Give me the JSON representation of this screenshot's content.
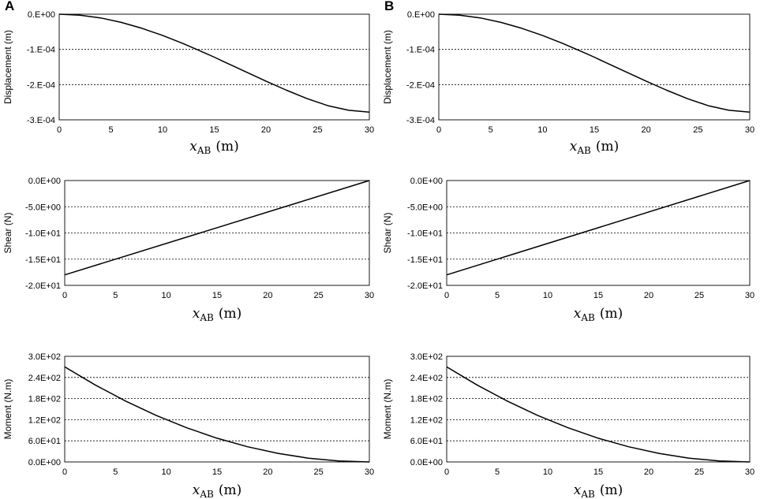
{
  "panels": [
    {
      "label": "A"
    },
    {
      "label": "B"
    }
  ],
  "chart_data": [
    {
      "panel": "A",
      "type": "line",
      "title": "",
      "ylabel": "Displacement (m)",
      "xlabel": {
        "var": "x",
        "sub": "AB",
        "unit": "(m)"
      },
      "xlim": [
        0,
        30
      ],
      "ylim": [
        -0.0003,
        0
      ],
      "xticks": [
        0,
        5,
        10,
        15,
        20,
        25,
        30
      ],
      "xtick_labels": [
        "0",
        "5",
        "10",
        "15",
        "20",
        "25",
        "30"
      ],
      "yticks": [
        0,
        -0.0001,
        -0.0002,
        -0.0003
      ],
      "ytick_labels": [
        "0.E+00",
        "-1.E-04",
        "-2.E-04",
        "-3.E-04"
      ],
      "gridlines": [
        -0.0001,
        -0.0002
      ],
      "series": [
        {
          "name": "Displacement",
          "x": [
            0,
            2,
            4,
            6,
            8,
            10,
            12,
            14,
            15,
            16,
            18,
            20,
            22,
            24,
            26,
            28,
            30
          ],
          "y": [
            0,
            -2.7e-06,
            -1.06e-05,
            -2.32e-05,
            -4e-05,
            -6.03e-05,
            -8.35e-05,
            -0.000109,
            -0.000122,
            -0.000136,
            -0.000163,
            -0.00019,
            -0.000216,
            -0.00024,
            -0.00026,
            -0.000273,
            -0.000278
          ]
        }
      ]
    },
    {
      "panel": "B",
      "type": "line",
      "title": "",
      "ylabel": "Displacement (m)",
      "xlabel": {
        "var": "x",
        "sub": "AB",
        "unit": "(m)"
      },
      "xlim": [
        0,
        30
      ],
      "ylim": [
        -0.0003,
        0
      ],
      "xticks": [
        0,
        5,
        10,
        15,
        20,
        25,
        30
      ],
      "xtick_labels": [
        "0",
        "5",
        "10",
        "15",
        "20",
        "25",
        "30"
      ],
      "yticks": [
        0,
        -0.0001,
        -0.0002,
        -0.0003
      ],
      "ytick_labels": [
        "0.E+00",
        "-1.E-04",
        "-2.E-04",
        "-3.E-04"
      ],
      "gridlines": [
        -0.0001,
        -0.0002
      ],
      "series": [
        {
          "name": "Displacement",
          "x": [
            0,
            2,
            4,
            6,
            8,
            10,
            12,
            14,
            15,
            16,
            18,
            20,
            22,
            24,
            26,
            28,
            30
          ],
          "y": [
            0,
            -2.7e-06,
            -1.06e-05,
            -2.32e-05,
            -4e-05,
            -6.03e-05,
            -8.35e-05,
            -0.000109,
            -0.000122,
            -0.000136,
            -0.000163,
            -0.00019,
            -0.000216,
            -0.00024,
            -0.00026,
            -0.000273,
            -0.000278
          ]
        }
      ]
    },
    {
      "panel": "A",
      "type": "line",
      "title": "",
      "ylabel": "Shear (N)",
      "xlabel": {
        "var": "x",
        "sub": "AB",
        "unit": "(m)"
      },
      "xlim": [
        0,
        30
      ],
      "ylim": [
        -20,
        0
      ],
      "xticks": [
        0,
        5,
        10,
        15,
        20,
        25,
        30
      ],
      "xtick_labels": [
        "0",
        "5",
        "10",
        "15",
        "20",
        "25",
        "30"
      ],
      "yticks": [
        0,
        -5,
        -10,
        -15,
        -20
      ],
      "ytick_labels": [
        "0.0E+00",
        "-5.0E+00",
        "-1.0E+01",
        "-1.5E+01",
        "-2.0E+01"
      ],
      "gridlines": [
        -5,
        -10,
        -15
      ],
      "series": [
        {
          "name": "Shear",
          "x": [
            0,
            30
          ],
          "y": [
            -18,
            0
          ]
        }
      ]
    },
    {
      "panel": "B",
      "type": "line",
      "title": "",
      "ylabel": "Shear (N)",
      "xlabel": {
        "var": "x",
        "sub": "AB",
        "unit": "(m)"
      },
      "xlim": [
        0,
        30
      ],
      "ylim": [
        -20,
        0
      ],
      "xticks": [
        0,
        5,
        10,
        15,
        20,
        25,
        30
      ],
      "xtick_labels": [
        "0",
        "5",
        "10",
        "15",
        "20",
        "25",
        "30"
      ],
      "yticks": [
        0,
        -5,
        -10,
        -15,
        -20
      ],
      "ytick_labels": [
        "0.0E+00",
        "-5.0E+00",
        "-1.0E+01",
        "-1.5E+01",
        "-2.0E+01"
      ],
      "gridlines": [
        -5,
        -10,
        -15
      ],
      "series": [
        {
          "name": "Shear",
          "x": [
            0,
            30
          ],
          "y": [
            -18,
            0
          ]
        }
      ]
    },
    {
      "panel": "A",
      "type": "line",
      "title": "",
      "ylabel": "Moment (N.m)",
      "xlabel": {
        "var": "x",
        "sub": "AB",
        "unit": "(m)"
      },
      "xlim": [
        0,
        30
      ],
      "ylim": [
        0,
        300
      ],
      "xticks": [
        0,
        5,
        10,
        15,
        20,
        25,
        30
      ],
      "xtick_labels": [
        "0",
        "5",
        "10",
        "15",
        "20",
        "25",
        "30"
      ],
      "yticks": [
        0,
        60,
        120,
        180,
        240,
        300
      ],
      "ytick_labels": [
        "0.0E+00",
        "6.0E+01",
        "1.2E+02",
        "1.8E+02",
        "2.4E+02",
        "3.0E+02"
      ],
      "gridlines": [
        60,
        120,
        180,
        240
      ],
      "series": [
        {
          "name": "Moment",
          "x": [
            0,
            3,
            6,
            9,
            12,
            15,
            18,
            21,
            24,
            27,
            30
          ],
          "y": [
            270,
            218.7,
            172.8,
            132.3,
            97.2,
            67.5,
            43.2,
            24.3,
            10.8,
            2.7,
            0
          ]
        }
      ]
    },
    {
      "panel": "B",
      "type": "line",
      "title": "",
      "ylabel": "Moment (N.m)",
      "xlabel": {
        "var": "x",
        "sub": "AB",
        "unit": "(m)"
      },
      "xlim": [
        0,
        30
      ],
      "ylim": [
        0,
        300
      ],
      "xticks": [
        0,
        5,
        10,
        15,
        20,
        25,
        30
      ],
      "xtick_labels": [
        "0",
        "5",
        "10",
        "15",
        "20",
        "25",
        "30"
      ],
      "yticks": [
        0,
        60,
        120,
        180,
        240,
        300
      ],
      "ytick_labels": [
        "0.0E+00",
        "6.0E+01",
        "1.2E+02",
        "1.8E+02",
        "2.4E+02",
        "3.0E+02"
      ],
      "gridlines": [
        60,
        120,
        180,
        240
      ],
      "series": [
        {
          "name": "Moment",
          "x": [
            0,
            3,
            6,
            9,
            12,
            15,
            18,
            21,
            24,
            27,
            30
          ],
          "y": [
            270,
            218.7,
            172.8,
            132.3,
            97.2,
            67.5,
            43.2,
            24.3,
            10.8,
            2.7,
            0
          ]
        }
      ]
    }
  ]
}
